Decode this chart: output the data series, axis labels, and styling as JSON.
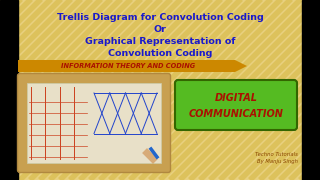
{
  "bg_color": "#e8d080",
  "stripe_color": "#d4b840",
  "title_line1": "Trellis Diagram for Convolution Coding",
  "title_line2": "Or",
  "title_line3": "Graphical Representation of",
  "title_line4": "Convolution Coding",
  "title_color": "#1a1acc",
  "banner_text": "INFORMATION THEORY AND CODING",
  "banner_bg": "#cc8800",
  "banner_text_color": "#aa1100",
  "box2_text_line1": "DIGITAL",
  "box2_text_line2": "COMMUNICATION",
  "box2_bg": "#55bb22",
  "box2_text_color": "#aa1100",
  "box2_border": "#336600",
  "credit_line1": "Techno Tutorials",
  "credit_line2": "By Manju Singh",
  "credit_color": "#884400",
  "left_panel_bg": "#c8a050",
  "left_panel_inner": "#e8e0c8",
  "black_bar_width": 18,
  "figw": 3.2,
  "figh": 1.8,
  "dpi": 100
}
